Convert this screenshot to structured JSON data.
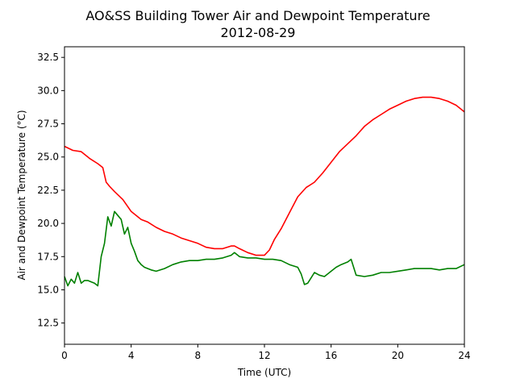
{
  "chart_data": {
    "type": "line",
    "title": "AO&SS Building Tower Air and Dewpoint Temperature",
    "subtitle": "2012-08-29",
    "xlabel": "Time (UTC)",
    "ylabel": "Air and Dewpoint Temperature (°C)",
    "xlim": [
      0,
      24
    ],
    "ylim": [
      10.9,
      33.3
    ],
    "xticks": [
      0,
      4,
      8,
      12,
      16,
      20,
      24
    ],
    "xtick_labels": [
      "0",
      "4",
      "8",
      "12",
      "16",
      "20",
      "24"
    ],
    "yticks": [
      12.5,
      15.0,
      17.5,
      20.0,
      22.5,
      25.0,
      27.5,
      30.0,
      32.5
    ],
    "ytick_labels": [
      "12.5",
      "15.0",
      "17.5",
      "20.0",
      "22.5",
      "25.0",
      "27.5",
      "30.0",
      "32.5"
    ],
    "grid": false,
    "series": [
      {
        "color": "#ff0000",
        "x": [
          0,
          0.5,
          1,
          1.2,
          1.5,
          2,
          2.1,
          2.3,
          2.5,
          2.7,
          3,
          3.5,
          4,
          4.3,
          4.6,
          5,
          5.5,
          6,
          6.5,
          7,
          7.5,
          8,
          8.5,
          9,
          9.5,
          10,
          10.2,
          10.5,
          11,
          11.5,
          12,
          12.3,
          12.6,
          13,
          13.5,
          14,
          14.5,
          15,
          15.5,
          16,
          16.5,
          17,
          17.5,
          18,
          18.5,
          19,
          19.5,
          20,
          20.5,
          21,
          21.5,
          22,
          22.5,
          23,
          23.5,
          24
        ],
        "values": [
          25.8,
          25.5,
          25.4,
          25.2,
          24.9,
          24.5,
          24.4,
          24.2,
          23.1,
          22.8,
          22.4,
          21.8,
          20.9,
          20.6,
          20.3,
          20.1,
          19.7,
          19.4,
          19.2,
          18.9,
          18.7,
          18.5,
          18.2,
          18.1,
          18.1,
          18.3,
          18.3,
          18.1,
          17.8,
          17.6,
          17.6,
          18.0,
          18.8,
          19.6,
          20.8,
          22.0,
          22.7,
          23.1,
          23.8,
          24.6,
          25.4,
          26.0,
          26.6,
          27.3,
          27.8,
          28.2,
          28.6,
          28.9,
          29.2,
          29.4,
          29.5,
          29.5,
          29.4,
          29.2,
          28.9,
          28.4
        ]
      },
      {
        "color": "#008000",
        "x": [
          0,
          0.2,
          0.4,
          0.6,
          0.8,
          1,
          1.2,
          1.4,
          1.6,
          1.8,
          2,
          2.2,
          2.4,
          2.6,
          2.8,
          3,
          3.2,
          3.4,
          3.6,
          3.8,
          4,
          4.2,
          4.4,
          4.6,
          4.8,
          5,
          5.2,
          5.5,
          6,
          6.5,
          7,
          7.5,
          8,
          8.5,
          9,
          9.5,
          10,
          10.2,
          10.5,
          11,
          11.5,
          12,
          12.5,
          13,
          13.5,
          14,
          14.2,
          14.4,
          14.6,
          14.8,
          15,
          15.3,
          15.6,
          16,
          16.3,
          16.6,
          17,
          17.2,
          17.5,
          18,
          18.5,
          19,
          19.5,
          20,
          20.5,
          21,
          21.5,
          22,
          22.5,
          23,
          23.5,
          24
        ],
        "values": [
          16.0,
          15.3,
          15.8,
          15.5,
          16.3,
          15.5,
          15.7,
          15.7,
          15.6,
          15.5,
          15.3,
          17.5,
          18.5,
          20.5,
          19.8,
          20.9,
          20.6,
          20.3,
          19.2,
          19.7,
          18.5,
          17.9,
          17.2,
          16.9,
          16.7,
          16.6,
          16.5,
          16.4,
          16.6,
          16.9,
          17.1,
          17.2,
          17.2,
          17.3,
          17.3,
          17.4,
          17.6,
          17.8,
          17.5,
          17.4,
          17.4,
          17.3,
          17.3,
          17.2,
          16.9,
          16.7,
          16.2,
          15.4,
          15.5,
          15.9,
          16.3,
          16.1,
          16.0,
          16.4,
          16.7,
          16.9,
          17.1,
          17.3,
          16.1,
          16.0,
          16.1,
          16.3,
          16.3,
          16.4,
          16.5,
          16.6,
          16.6,
          16.6,
          16.5,
          16.6,
          16.6,
          16.9
        ]
      }
    ]
  }
}
